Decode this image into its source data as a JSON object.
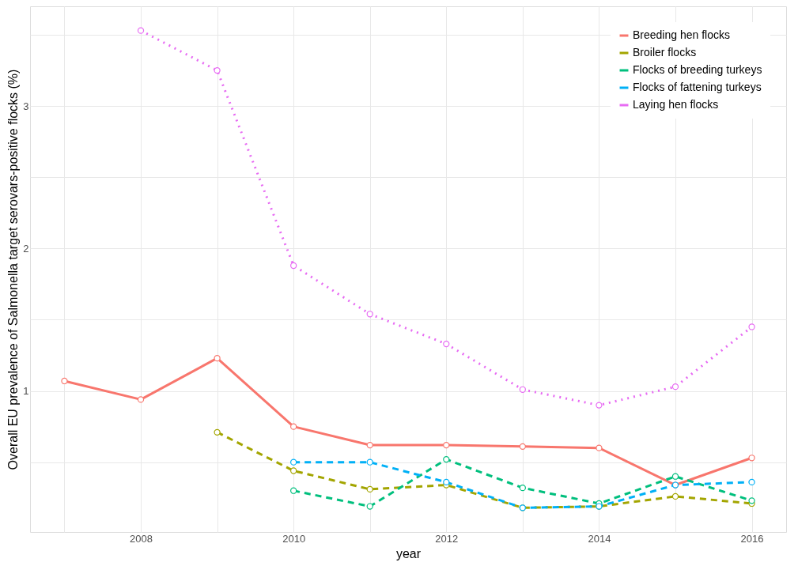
{
  "chart_data": {
    "type": "line",
    "xlabel": "year",
    "ylabel": "Overall EU prevalence of Salmonella target serovars-positive flocks (%)",
    "x": [
      2007,
      2008,
      2009,
      2010,
      2011,
      2012,
      2013,
      2014,
      2015,
      2016
    ],
    "series": [
      {
        "name": "Breeding hen flocks",
        "color": "#f8766d",
        "line_style": "solid",
        "values": [
          1.07,
          0.94,
          1.23,
          0.75,
          0.62,
          0.62,
          0.61,
          0.6,
          0.34,
          0.53
        ]
      },
      {
        "name": "Broiler flocks",
        "color": "#a3a500",
        "line_style": "dashed",
        "values": [
          null,
          null,
          0.71,
          0.44,
          0.31,
          0.34,
          0.18,
          0.19,
          0.26,
          0.21
        ]
      },
      {
        "name": "Flocks of breeding turkeys",
        "color": "#00bf7d",
        "line_style": "dashed",
        "values": [
          null,
          null,
          null,
          0.3,
          0.19,
          0.52,
          0.32,
          0.21,
          0.4,
          0.23
        ]
      },
      {
        "name": "Flocks of fattening turkeys",
        "color": "#00b0f6",
        "line_style": "dashed",
        "values": [
          null,
          null,
          null,
          0.5,
          0.5,
          0.36,
          0.18,
          0.19,
          0.34,
          0.36
        ]
      },
      {
        "name": "Laying hen flocks",
        "color": "#e76bf3",
        "line_style": "dotted",
        "values": [
          null,
          3.53,
          3.25,
          1.88,
          1.54,
          1.33,
          1.01,
          0.9,
          1.03,
          1.45
        ]
      }
    ],
    "xlim": [
      2006.55,
      2016.45
    ],
    "xticks": [
      {
        "value": 2007,
        "label": null
      },
      2008,
      {
        "value": 2009,
        "label": null
      },
      2010,
      {
        "value": 2011,
        "label": null
      },
      2012,
      {
        "value": 2013,
        "label": null
      },
      2014,
      {
        "value": 2015,
        "label": null
      },
      2016
    ],
    "ylim": [
      0.01,
      3.7
    ],
    "yticks": [
      {
        "value": 0.5,
        "label": null
      },
      1,
      {
        "value": 1.5,
        "label": null
      },
      2,
      {
        "value": 2.5,
        "label": null
      },
      3,
      {
        "value": 3.5,
        "label": null
      }
    ],
    "grid": true,
    "legend": "top right",
    "marker": "circle"
  }
}
